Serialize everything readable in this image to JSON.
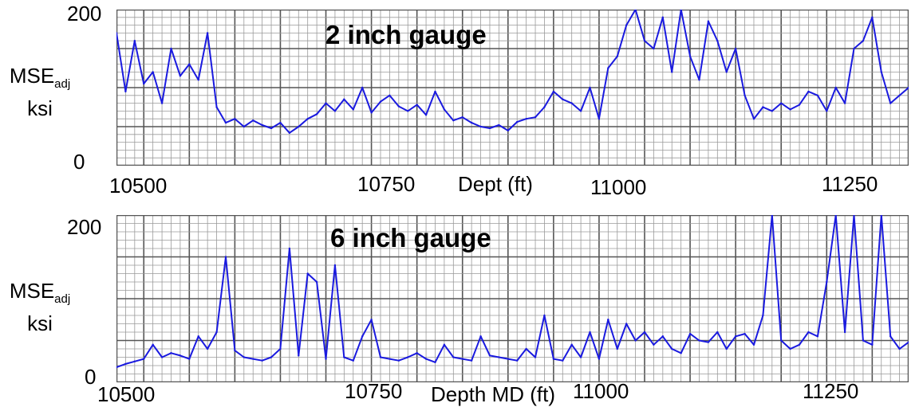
{
  "charts": [
    {
      "title": "2 inch gauge",
      "ylabel": "MSE",
      "ylabel_sub": "adj",
      "yunit": "ksi",
      "xlabel": "Dept (ft)",
      "ytick_top": "200",
      "ytick_bottom": "0",
      "xticks": [
        "10500",
        "10750",
        "11000",
        "11250"
      ]
    },
    {
      "title": "6 inch gauge",
      "ylabel": "MSE",
      "ylabel_sub": "adj",
      "yunit": "ksi",
      "xlabel": "Depth MD (ft)",
      "ytick_top": "200",
      "ytick_bottom": "0",
      "xticks": [
        "10500",
        "10750",
        "11000",
        "11250"
      ]
    }
  ],
  "colors": {
    "trace": "#1a1adf",
    "grid_minor": "#9a9a9a",
    "grid_major": "#555555"
  },
  "chart_data": [
    {
      "type": "line",
      "title": "2 inch gauge",
      "xlabel": "Dept (ft)",
      "ylabel": "MSEadj ksi",
      "xlim": [
        10470,
        11340
      ],
      "ylim": [
        0,
        200
      ],
      "grid": true,
      "series": [
        {
          "x": [
            10470,
            10480,
            10490,
            10500,
            10510,
            10520,
            10530,
            10540,
            10550,
            10560,
            10570,
            10580,
            10590,
            10600,
            10610,
            10620,
            10630,
            10640,
            10650,
            10660,
            10670,
            10680,
            10690,
            10700,
            10710,
            10720,
            10730,
            10740,
            10750,
            10760,
            10770,
            10780,
            10790,
            10800,
            10810,
            10820,
            10830,
            10840,
            10850,
            10860,
            10870,
            10880,
            10890,
            10900,
            10910,
            10920,
            10930,
            10940,
            10950,
            10960,
            10970,
            10980,
            10990,
            11000,
            11010,
            11020,
            11030,
            11040,
            11050,
            11060,
            11070,
            11080,
            11090,
            11100,
            11110,
            11120,
            11130,
            11140,
            11150,
            11160,
            11170,
            11180,
            11190,
            11200,
            11210,
            11220,
            11230,
            11240,
            11250,
            11260,
            11270,
            11280,
            11290,
            11300,
            11310,
            11320,
            11330,
            11340
          ],
          "y": [
            170,
            95,
            160,
            105,
            120,
            80,
            150,
            115,
            130,
            110,
            170,
            75,
            55,
            60,
            50,
            58,
            52,
            48,
            55,
            42,
            50,
            60,
            66,
            80,
            70,
            85,
            72,
            100,
            68,
            82,
            90,
            76,
            70,
            78,
            65,
            95,
            72,
            58,
            62,
            55,
            50,
            48,
            52,
            45,
            56,
            60,
            62,
            75,
            95,
            85,
            80,
            70,
            100,
            60,
            125,
            140,
            180,
            200,
            160,
            150,
            190,
            120,
            200,
            140,
            110,
            185,
            160,
            120,
            150,
            90,
            60,
            75,
            70,
            80,
            72,
            78,
            95,
            90,
            70,
            100,
            80,
            150,
            160,
            190,
            120,
            80,
            90,
            100
          ]
        }
      ]
    },
    {
      "type": "line",
      "title": "6 inch gauge",
      "xlabel": "Depth MD (ft)",
      "ylabel": "MSEadj ksi",
      "xlim": [
        10470,
        11340
      ],
      "ylim": [
        0,
        200
      ],
      "grid": true,
      "series": [
        {
          "x": [
            10470,
            10480,
            10490,
            10500,
            10510,
            10520,
            10530,
            10540,
            10550,
            10560,
            10570,
            10580,
            10590,
            10600,
            10610,
            10620,
            10630,
            10640,
            10650,
            10660,
            10670,
            10680,
            10690,
            10700,
            10710,
            10720,
            10730,
            10740,
            10750,
            10760,
            10770,
            10780,
            10790,
            10800,
            10810,
            10820,
            10830,
            10840,
            10850,
            10860,
            10870,
            10880,
            10890,
            10900,
            10910,
            10920,
            10930,
            10940,
            10950,
            10960,
            10970,
            10980,
            10990,
            11000,
            11010,
            11020,
            11030,
            11040,
            11050,
            11060,
            11070,
            11080,
            11090,
            11100,
            11110,
            11120,
            11130,
            11140,
            11150,
            11160,
            11170,
            11180,
            11190,
            11200,
            11210,
            11220,
            11230,
            11240,
            11250,
            11260,
            11270,
            11280,
            11290,
            11300,
            11310,
            11320,
            11330,
            11340
          ],
          "y": [
            18,
            22,
            25,
            28,
            45,
            30,
            35,
            32,
            28,
            55,
            40,
            60,
            150,
            38,
            30,
            28,
            26,
            30,
            40,
            160,
            32,
            130,
            120,
            28,
            140,
            30,
            26,
            55,
            75,
            30,
            28,
            26,
            30,
            35,
            28,
            24,
            45,
            30,
            28,
            26,
            55,
            32,
            30,
            28,
            26,
            40,
            30,
            80,
            28,
            26,
            45,
            30,
            60,
            28,
            75,
            40,
            70,
            50,
            60,
            45,
            55,
            40,
            35,
            58,
            50,
            48,
            60,
            40,
            55,
            58,
            45,
            80,
            200,
            50,
            40,
            45,
            60,
            55,
            120,
            200,
            60,
            200,
            50,
            45,
            200,
            55,
            40,
            48
          ]
        }
      ]
    }
  ]
}
